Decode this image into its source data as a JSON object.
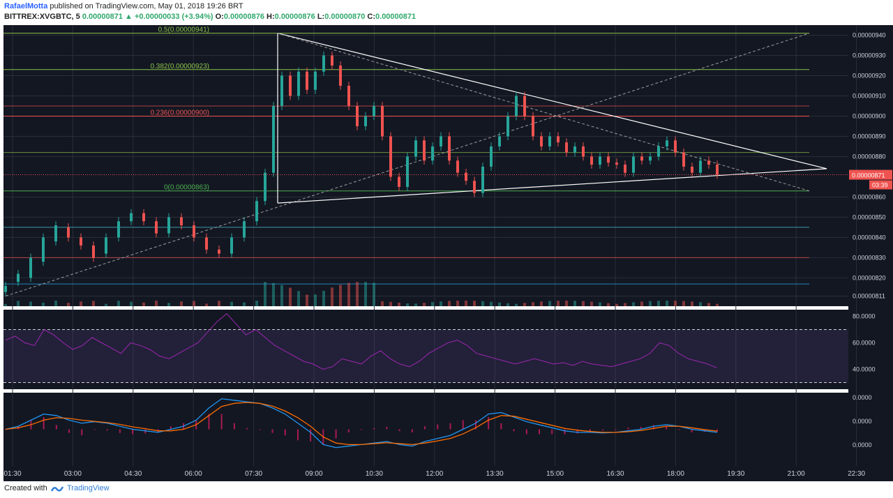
{
  "header": {
    "author": "RafaelMotta",
    "published": "published on TradingView.com, May 01, 2018 19:26 BRT",
    "symbol": "BITTREX:XVGBTC, 5",
    "last_change": "0.00000871",
    "change_prefix": "▲",
    "change": "+0.00000033 (+3.94%)",
    "ohlc": {
      "o_label": "O:",
      "o": "0.00000876",
      "h_label": "H:",
      "h": "0.00000876",
      "l_label": "L:",
      "l": "0.00000870",
      "c_label": "C:",
      "c": "0.00000871"
    }
  },
  "footer": {
    "created_with": "Created with",
    "brand": "TradingView"
  },
  "colors": {
    "background": "#131722",
    "grid": "#2a2e39",
    "up": "#26a69a",
    "down": "#ef5350",
    "rsi_line": "#9c27b0",
    "macd_line": "#2196f3",
    "signal_line": "#ff6d00",
    "price_label": "#ef5350"
  },
  "chart_data": [
    {
      "type": "candlestick",
      "symbol": "BITTREX:XVGBTC",
      "interval": "5",
      "x_ticks": [
        "01:30",
        "03:00",
        "04:30",
        "06:00",
        "07:30",
        "09:00",
        "10:30",
        "12:00",
        "13:30",
        "15:00",
        "16:30",
        "18:00",
        "19:30",
        "21:00",
        "22:30"
      ],
      "y_ticks": [
        "0.00000940",
        "0.00000930",
        "0.00000920",
        "0.00000910",
        "0.00000900",
        "0.00000890",
        "0.00000880",
        "0.00000860",
        "0.00000850",
        "0.00000840",
        "0.00000830",
        "0.00000820",
        "0.00000811"
      ],
      "ylim": [
        8.06e-06,
        9.45e-06
      ],
      "last_price_label": "0.00000871",
      "countdown_label": "03:39",
      "fib_labels": [
        "0.5(0.00000941)",
        "0.382(0.00000923)",
        "0.236(0.00000900)",
        "0(0.00000863)"
      ],
      "series": [
        {
          "name": "price",
          "points": [
            [
              0,
              813,
              816
            ],
            [
              3,
              818,
              822
            ],
            [
              6,
              820,
              830
            ],
            [
              9,
              828,
              840
            ],
            [
              12,
              838,
              846
            ],
            [
              15,
              845,
              840
            ],
            [
              18,
              840,
              836
            ],
            [
              21,
              836,
              830
            ],
            [
              24,
              832,
              840
            ],
            [
              27,
              840,
              848
            ],
            [
              30,
              848,
              852
            ],
            [
              33,
              852,
              848
            ],
            [
              36,
              848,
              842
            ],
            [
              39,
              842,
              850
            ],
            [
              42,
              850,
              846
            ],
            [
              45,
              846,
              840
            ],
            [
              48,
              840,
              834
            ],
            [
              51,
              834,
              832
            ],
            [
              54,
              832,
              840
            ],
            [
              57,
              840,
              848
            ],
            [
              60,
              848,
              858
            ],
            [
              62,
              858,
              872
            ],
            [
              64,
              872,
              905
            ],
            [
              66,
              905,
              920
            ],
            [
              68,
              920,
              910
            ],
            [
              70,
              910,
              922
            ],
            [
              72,
              922,
              913
            ],
            [
              74,
              913,
              922
            ],
            [
              76,
              922,
              930
            ],
            [
              78,
              930,
              925
            ],
            [
              80,
              925,
              915
            ],
            [
              82,
              915,
              905
            ],
            [
              84,
              905,
              895
            ],
            [
              86,
              895,
              900
            ],
            [
              88,
              900,
              905
            ],
            [
              90,
              905,
              890
            ],
            [
              92,
              890,
              870
            ],
            [
              94,
              870,
              865
            ],
            [
              96,
              865,
              880
            ],
            [
              98,
              880,
              888
            ],
            [
              100,
              888,
              878
            ],
            [
              102,
              878,
              885
            ],
            [
              104,
              885,
              890
            ],
            [
              106,
              890,
              878
            ],
            [
              108,
              878,
              872
            ],
            [
              110,
              872,
              868
            ],
            [
              112,
              868,
              862
            ],
            [
              114,
              862,
              875
            ],
            [
              116,
              875,
              885
            ],
            [
              118,
              885,
              890
            ],
            [
              120,
              890,
              900
            ],
            [
              122,
              900,
              910
            ],
            [
              124,
              910,
              900
            ],
            [
              126,
              900,
              890
            ],
            [
              128,
              890,
              885
            ],
            [
              130,
              885,
              890
            ],
            [
              132,
              890,
              887
            ],
            [
              134,
              887,
              882
            ],
            [
              136,
              882,
              885
            ],
            [
              138,
              885,
              880
            ],
            [
              140,
              880,
              876
            ],
            [
              142,
              876,
              880
            ],
            [
              144,
              880,
              877
            ],
            [
              146,
              877,
              876
            ],
            [
              148,
              876,
              872
            ],
            [
              150,
              872,
              880
            ],
            [
              152,
              880,
              878
            ],
            [
              154,
              878,
              880
            ],
            [
              156,
              880,
              885
            ],
            [
              158,
              885,
              888
            ],
            [
              160,
              888,
              882
            ],
            [
              162,
              882,
              875
            ],
            [
              164,
              875,
              872
            ],
            [
              166,
              872,
              878
            ],
            [
              168,
              878,
              876
            ],
            [
              170,
              876,
              871
            ]
          ]
        }
      ]
    },
    {
      "type": "line",
      "title": "RSI",
      "y_ticks": [
        "80.0000",
        "60.0000",
        "40.0000"
      ],
      "ylim": [
        25,
        85
      ],
      "bands": [
        70,
        30
      ],
      "series": [
        {
          "name": "rsi",
          "values": [
            62,
            65,
            60,
            58,
            70,
            66,
            60,
            55,
            58,
            64,
            60,
            56,
            52,
            60,
            58,
            55,
            50,
            48,
            52,
            56,
            60,
            68,
            76,
            82,
            74,
            66,
            70,
            64,
            58,
            54,
            50,
            46,
            44,
            40,
            42,
            48,
            46,
            44,
            50,
            54,
            48,
            44,
            42,
            46,
            52,
            56,
            60,
            62,
            58,
            52,
            50,
            48,
            46,
            44,
            46,
            48,
            46,
            44,
            45,
            43,
            46,
            44,
            43,
            42,
            44,
            46,
            48,
            52,
            60,
            58,
            52,
            48,
            46,
            44,
            41
          ]
        }
      ]
    },
    {
      "type": "line",
      "title": "MACD",
      "y_ticks": [
        "0.0000",
        "0.0000",
        "0.0000"
      ],
      "ylim": [
        -1.2,
        1.2
      ],
      "series": [
        {
          "name": "macd",
          "values": [
            0.0,
            0.1,
            0.3,
            0.5,
            0.45,
            0.3,
            0.2,
            0.25,
            0.2,
            0.1,
            0.0,
            -0.05,
            -0.1,
            0.0,
            0.1,
            0.3,
            0.7,
            1.0,
            0.95,
            0.9,
            0.85,
            0.7,
            0.5,
            0.2,
            -0.1,
            -0.5,
            -0.6,
            -0.55,
            -0.5,
            -0.45,
            -0.4,
            -0.5,
            -0.55,
            -0.4,
            -0.3,
            -0.2,
            0.0,
            0.2,
            0.5,
            0.55,
            0.4,
            0.25,
            0.15,
            0.05,
            -0.05,
            -0.1,
            -0.1,
            -0.12,
            -0.1,
            -0.05,
            0.0,
            0.1,
            0.15,
            0.1,
            0.0,
            -0.05,
            -0.1
          ]
        },
        {
          "name": "signal",
          "values": [
            0.0,
            0.05,
            0.15,
            0.3,
            0.38,
            0.36,
            0.3,
            0.26,
            0.22,
            0.16,
            0.08,
            0.02,
            -0.05,
            -0.05,
            0.0,
            0.15,
            0.45,
            0.75,
            0.85,
            0.88,
            0.85,
            0.76,
            0.6,
            0.38,
            0.1,
            -0.25,
            -0.45,
            -0.5,
            -0.5,
            -0.47,
            -0.44,
            -0.47,
            -0.5,
            -0.45,
            -0.38,
            -0.3,
            -0.15,
            0.05,
            0.3,
            0.45,
            0.43,
            0.33,
            0.23,
            0.13,
            0.03,
            -0.03,
            -0.07,
            -0.1,
            -0.1,
            -0.08,
            -0.04,
            0.03,
            0.1,
            0.1,
            0.05,
            -0.01,
            -0.06
          ]
        }
      ]
    }
  ]
}
